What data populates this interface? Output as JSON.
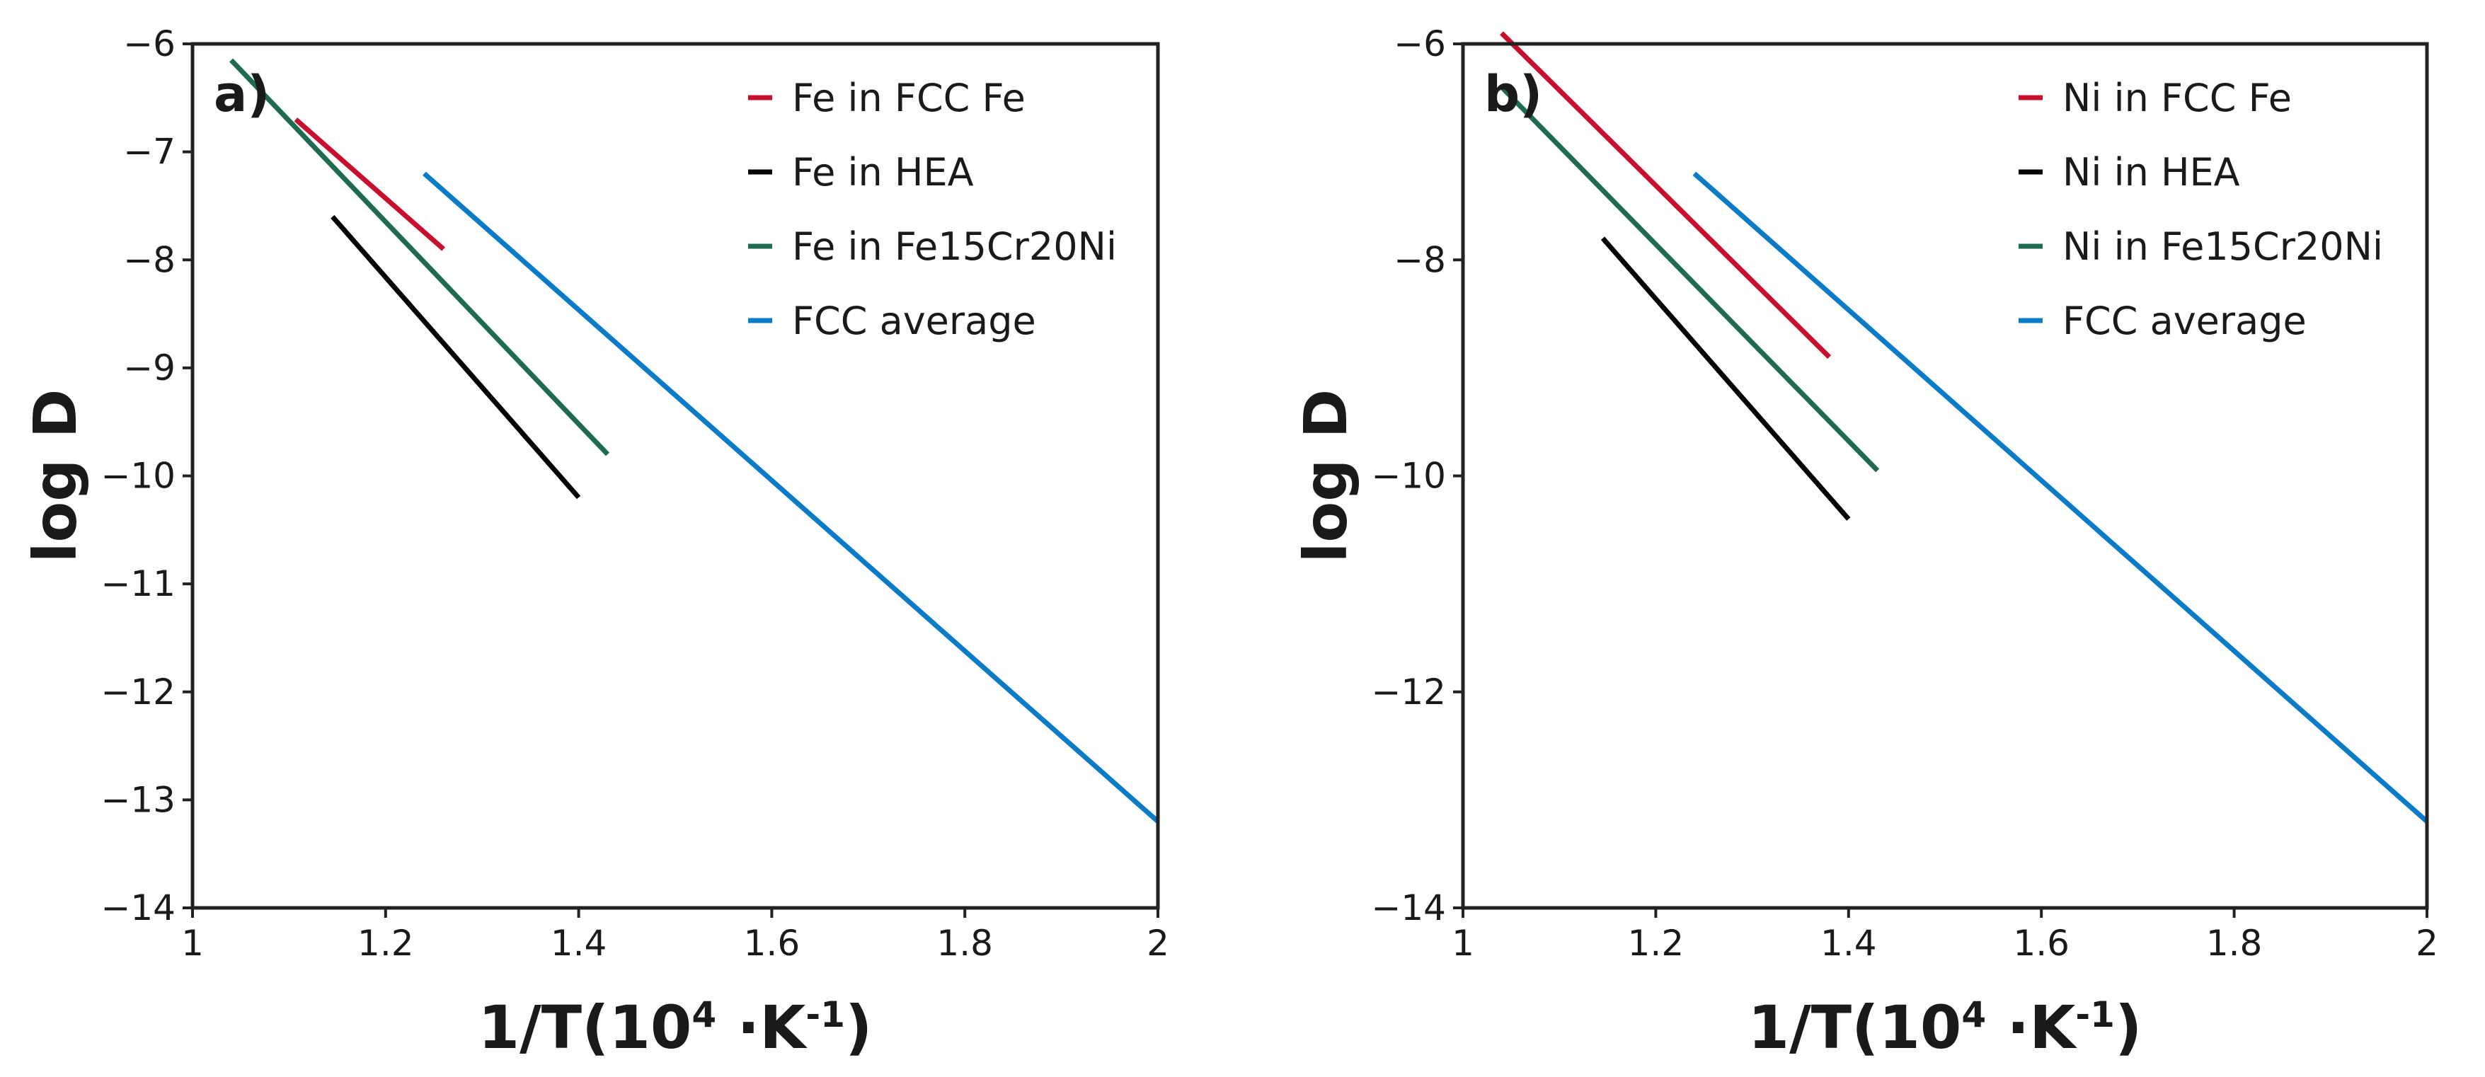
{
  "chart_data": [
    {
      "type": "line",
      "panel_label": "a)",
      "xlabel": "1/T(10⁴·K⁻¹)",
      "ylabel": "log D",
      "xlim": [
        1.0,
        2.0
      ],
      "ylim": [
        -14,
        -6
      ],
      "xticks": [
        1.0,
        1.2,
        1.4,
        1.6,
        1.8,
        2.0
      ],
      "yticks": [
        -14,
        -13,
        -12,
        -11,
        -10,
        -9,
        -8,
        -7,
        -6
      ],
      "grid": false,
      "legend_position": "top-right",
      "series": [
        {
          "name": "Fe in FCC Fe",
          "color": "#c8102e",
          "x": [
            1.107,
            1.26
          ],
          "y": [
            -6.7,
            -7.9
          ]
        },
        {
          "name": "Fe in HEA",
          "color": "#000000",
          "x": [
            1.145,
            1.4
          ],
          "y": [
            -7.6,
            -10.2
          ]
        },
        {
          "name": "Fe in Fe15Cr20Ni",
          "color": "#1e6b4f",
          "x": [
            1.04,
            1.43
          ],
          "y": [
            -6.15,
            -9.8
          ]
        },
        {
          "name": "FCC average",
          "color": "#0a7bc8",
          "x": [
            1.24,
            2.0
          ],
          "y": [
            -7.2,
            -13.2
          ]
        }
      ]
    },
    {
      "type": "line",
      "panel_label": "b)",
      "xlabel": "1/T(10⁴·K⁻¹)",
      "ylabel": "log D",
      "xlim": [
        1.0,
        2.0
      ],
      "ylim": [
        -14,
        -6
      ],
      "xticks": [
        1.0,
        1.2,
        1.4,
        1.6,
        1.8,
        2.0
      ],
      "yticks": [
        -14,
        -12,
        -10,
        -8,
        -6
      ],
      "grid": false,
      "legend_position": "top-right",
      "series": [
        {
          "name": "Ni in FCC Fe",
          "color": "#c8102e",
          "x": [
            1.04,
            1.38
          ],
          "y": [
            -5.9,
            -8.9
          ]
        },
        {
          "name": "Ni in HEA",
          "color": "#000000",
          "x": [
            1.145,
            1.4
          ],
          "y": [
            -7.8,
            -10.4
          ]
        },
        {
          "name": "Ni in Fe15Cr20Ni",
          "color": "#1e6b4f",
          "x": [
            1.04,
            1.43
          ],
          "y": [
            -6.4,
            -9.95
          ]
        },
        {
          "name": "FCC average",
          "color": "#0a7bc8",
          "x": [
            1.24,
            2.0
          ],
          "y": [
            -7.2,
            -13.2
          ]
        }
      ]
    }
  ]
}
